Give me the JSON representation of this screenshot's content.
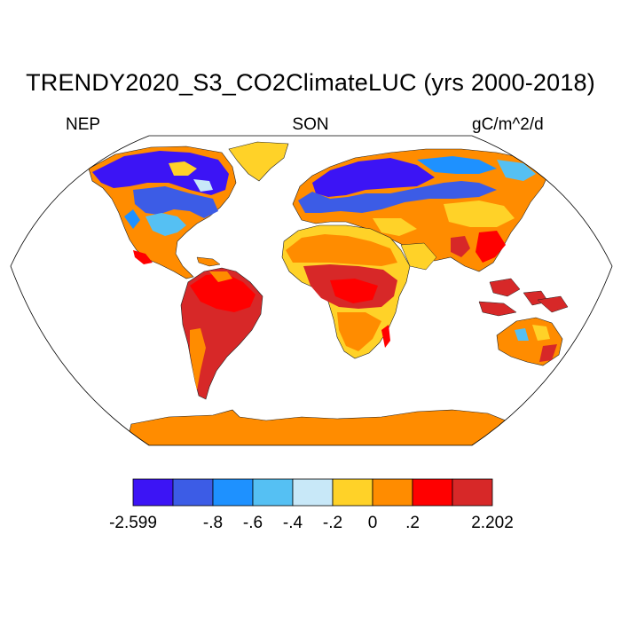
{
  "title": "TRENDY2020_S3_CO2ClimateLUC (yrs 2000-2018)",
  "left_label": "NEP",
  "center_label": "SON",
  "right_label": "gC/m^2/d",
  "colorbar": {
    "colors": [
      "#3c14f5",
      "#3c5ce6",
      "#1e91ff",
      "#55c0f3",
      "#c8e8f8",
      "#ffd228",
      "#ff8c00",
      "#ff0000",
      "#d72828"
    ],
    "labels": [
      "-2.599",
      "-.8",
      "-.6",
      "-.4",
      "-.2",
      "0",
      ".2",
      "2.202"
    ]
  }
}
